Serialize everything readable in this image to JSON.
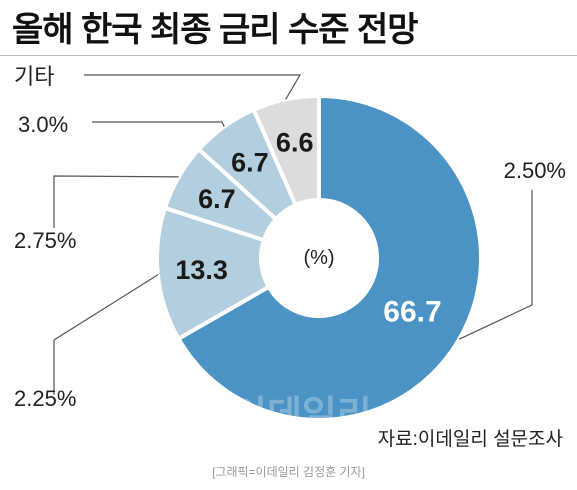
{
  "title": "올해 한국 최종 금리 수준 전망",
  "chart_data": {
    "type": "pie",
    "donut": true,
    "center_label": "(%)",
    "slices": [
      {
        "label": "2.50%",
        "value": 66.7,
        "color": "#4a93c4"
      },
      {
        "label": "2.25%",
        "value": 13.3,
        "color": "#b3cfdf"
      },
      {
        "label": "2.75%",
        "value": 6.7,
        "color": "#b3cfdf"
      },
      {
        "label": "3.0%",
        "value": 6.7,
        "color": "#b3cfdf"
      },
      {
        "label": "기타",
        "value": 6.6,
        "color": "#dcdcdc"
      }
    ]
  },
  "watermark": "이데일리",
  "source": "자료:이데일리 설문조사",
  "credit": "[그래픽=이데일리 김정훈 기자]"
}
